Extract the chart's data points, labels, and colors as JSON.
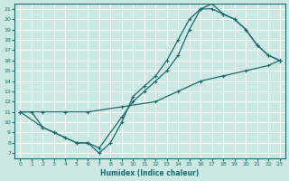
{
  "xlabel": "Humidex (Indice chaleur)",
  "bg_color": "#cce8e4",
  "line_color": "#1a6b6b",
  "grid_color": "#ffffff",
  "xlim": [
    -0.5,
    23.5
  ],
  "ylim": [
    6.5,
    21.5
  ],
  "xticks": [
    0,
    1,
    2,
    3,
    4,
    5,
    6,
    7,
    8,
    9,
    10,
    11,
    12,
    13,
    14,
    15,
    16,
    17,
    18,
    19,
    20,
    21,
    22,
    23
  ],
  "yticks": [
    7,
    8,
    9,
    10,
    11,
    12,
    13,
    14,
    15,
    16,
    17,
    18,
    19,
    20,
    21
  ],
  "line1_x": [
    0,
    1,
    2,
    3,
    4,
    5,
    6,
    7,
    9,
    10,
    11,
    12,
    13,
    14,
    15,
    16,
    17,
    18,
    19,
    20,
    21,
    22,
    23
  ],
  "line1_y": [
    11,
    11,
    9.5,
    9,
    8.5,
    8,
    8,
    7.5,
    10.5,
    12,
    13,
    14,
    15,
    16.5,
    19,
    21,
    21,
    20.5,
    20,
    19,
    17.5,
    16.5,
    16
  ],
  "line2_x": [
    0,
    2,
    3,
    4,
    5,
    6,
    7,
    8,
    9,
    10,
    11,
    12,
    13,
    14,
    15,
    16,
    17,
    18,
    19,
    20,
    21,
    22,
    23
  ],
  "line2_y": [
    11,
    9.5,
    9,
    8.5,
    8,
    8,
    7,
    8,
    10,
    12.5,
    13.5,
    14.5,
    16,
    18,
    20,
    21,
    21.5,
    20.5,
    20,
    19,
    17.5,
    16.5,
    16
  ],
  "line3_x": [
    0,
    2,
    4,
    6,
    9,
    12,
    14,
    16,
    18,
    20,
    22,
    23
  ],
  "line3_y": [
    11,
    11,
    11,
    11,
    11.5,
    12,
    13,
    14,
    14.5,
    15,
    15.5,
    16
  ]
}
